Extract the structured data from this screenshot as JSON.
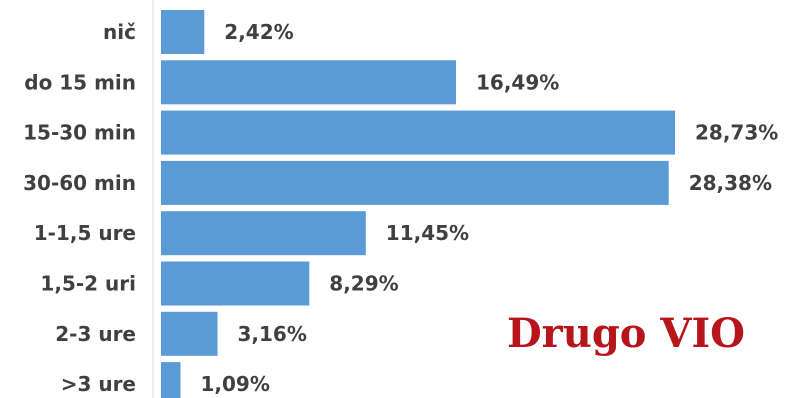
{
  "chart_data": {
    "type": "bar",
    "orientation": "horizontal",
    "categories": [
      "nič",
      "do 15 min",
      "15-30 min",
      "30-60 min",
      "1-1,5 ure",
      "1,5-2 uri",
      "2-3 ure",
      ">3 ure"
    ],
    "values": [
      2.42,
      16.49,
      28.73,
      28.38,
      11.45,
      8.29,
      3.16,
      1.09
    ],
    "value_labels": [
      "2,42%",
      "16,49%",
      "28,73%",
      "28,38%",
      "11,45%",
      "8,29%",
      "3,16%",
      "1,09%"
    ],
    "bar_color": "#5b9bd5",
    "annotation": "Drugo VIO",
    "annotation_color": "#b8141c",
    "xlim": [
      0,
      28.73
    ],
    "grid": false,
    "legend": "none"
  }
}
